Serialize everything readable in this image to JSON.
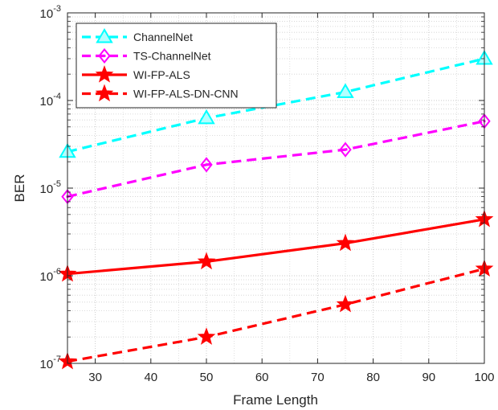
{
  "chart_data": {
    "type": "line",
    "xlabel": "Frame Length",
    "ylabel": "BER",
    "xlim": [
      25,
      100
    ],
    "ylim": [
      1e-07,
      0.001
    ],
    "yscale": "log",
    "grid": true,
    "minor_grid": true,
    "legend_position": "top-left",
    "x_ticks": [
      30,
      40,
      50,
      60,
      70,
      80,
      90,
      100
    ],
    "y_ticks": [
      {
        "value": 1e-07,
        "base": "10",
        "exp": "-7"
      },
      {
        "value": 1e-06,
        "base": "10",
        "exp": "-6"
      },
      {
        "value": 1e-05,
        "base": "10",
        "exp": "-5"
      },
      {
        "value": 0.0001,
        "base": "10",
        "exp": "-4"
      },
      {
        "value": 0.001,
        "base": "10",
        "exp": "-3"
      }
    ],
    "x": [
      25,
      50,
      75,
      100
    ],
    "series": [
      {
        "name": "ChannelNet",
        "color": "#00ffff",
        "dash": "dashed",
        "marker": "triangle",
        "values": [
          2.6e-05,
          6.3e-05,
          0.000125,
          0.0003
        ]
      },
      {
        "name": "TS-ChannelNet",
        "color": "#ff00ff",
        "dash": "dashed",
        "marker": "diamond",
        "values": [
          8e-06,
          1.85e-05,
          2.75e-05,
          5.8e-05
        ]
      },
      {
        "name": "WI-FP-ALS",
        "color": "#ff0000",
        "dash": "solid",
        "marker": "star",
        "values": [
          1.05e-06,
          1.45e-06,
          2.35e-06,
          4.4e-06
        ]
      },
      {
        "name": "WI-FP-ALS-DN-CNN",
        "color": "#ff0000",
        "dash": "dashed",
        "marker": "star",
        "values": [
          1.05e-07,
          2e-07,
          4.7e-07,
          1.2e-06
        ]
      }
    ]
  }
}
